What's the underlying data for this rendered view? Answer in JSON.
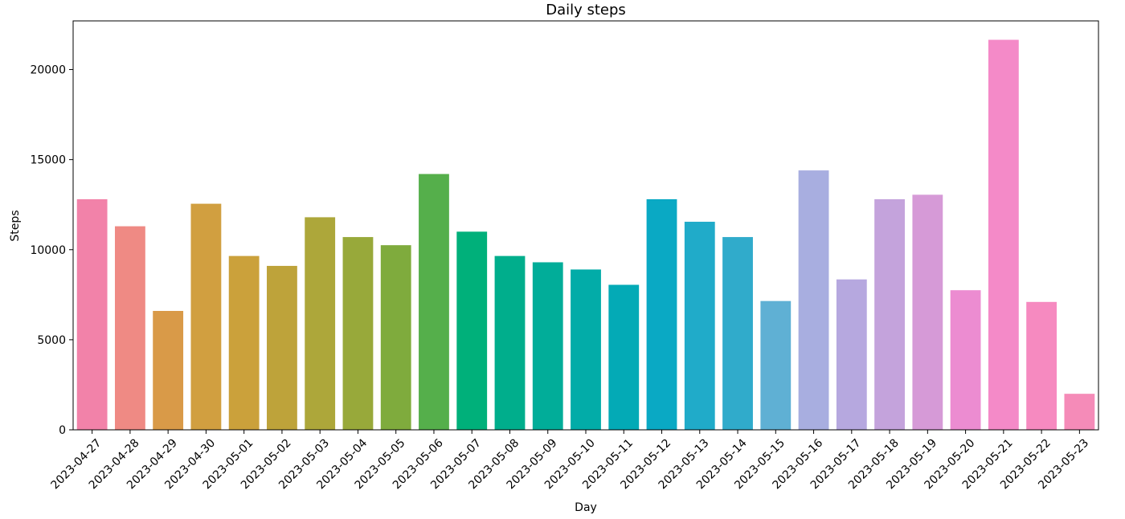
{
  "chart_data": {
    "type": "bar",
    "title": "Daily steps",
    "xlabel": "Day",
    "ylabel": "Steps",
    "ylim": [
      0,
      22700
    ],
    "yticks": [
      0,
      5000,
      10000,
      15000,
      20000
    ],
    "grid": false,
    "legend": "none",
    "categories": [
      "2023-04-27",
      "2023-04-28",
      "2023-04-29",
      "2023-04-30",
      "2023-05-01",
      "2023-05-02",
      "2023-05-03",
      "2023-05-04",
      "2023-05-05",
      "2023-05-06",
      "2023-05-07",
      "2023-05-08",
      "2023-05-09",
      "2023-05-10",
      "2023-05-11",
      "2023-05-12",
      "2023-05-13",
      "2023-05-14",
      "2023-05-15",
      "2023-05-16",
      "2023-05-17",
      "2023-05-18",
      "2023-05-19",
      "2023-05-20",
      "2023-05-21",
      "2023-05-22",
      "2023-05-23"
    ],
    "values": [
      12800,
      11300,
      6600,
      12550,
      9650,
      9100,
      11800,
      10700,
      10250,
      14200,
      11000,
      9650,
      9300,
      8900,
      8050,
      12800,
      11550,
      10700,
      7150,
      14400,
      8350,
      12800,
      13050,
      7750,
      21650,
      7100,
      2000
    ],
    "colors": [
      "#f282a9",
      "#ef8a84",
      "#d99a48",
      "#d19f40",
      "#cba13b",
      "#bea33a",
      "#ada73a",
      "#98a93a",
      "#7fab3d",
      "#55af4b",
      "#00b07a",
      "#00ae8c",
      "#01ad99",
      "#02aca8",
      "#03aab6",
      "#0aa9c4",
      "#20abc9",
      "#30abcb",
      "#5fb0d4",
      "#a8aee0",
      "#b6a8df",
      "#c4a3dc",
      "#d69ad7",
      "#ec8cd1",
      "#f48ac8",
      "#f68ac0",
      "#f58bb8"
    ]
  }
}
